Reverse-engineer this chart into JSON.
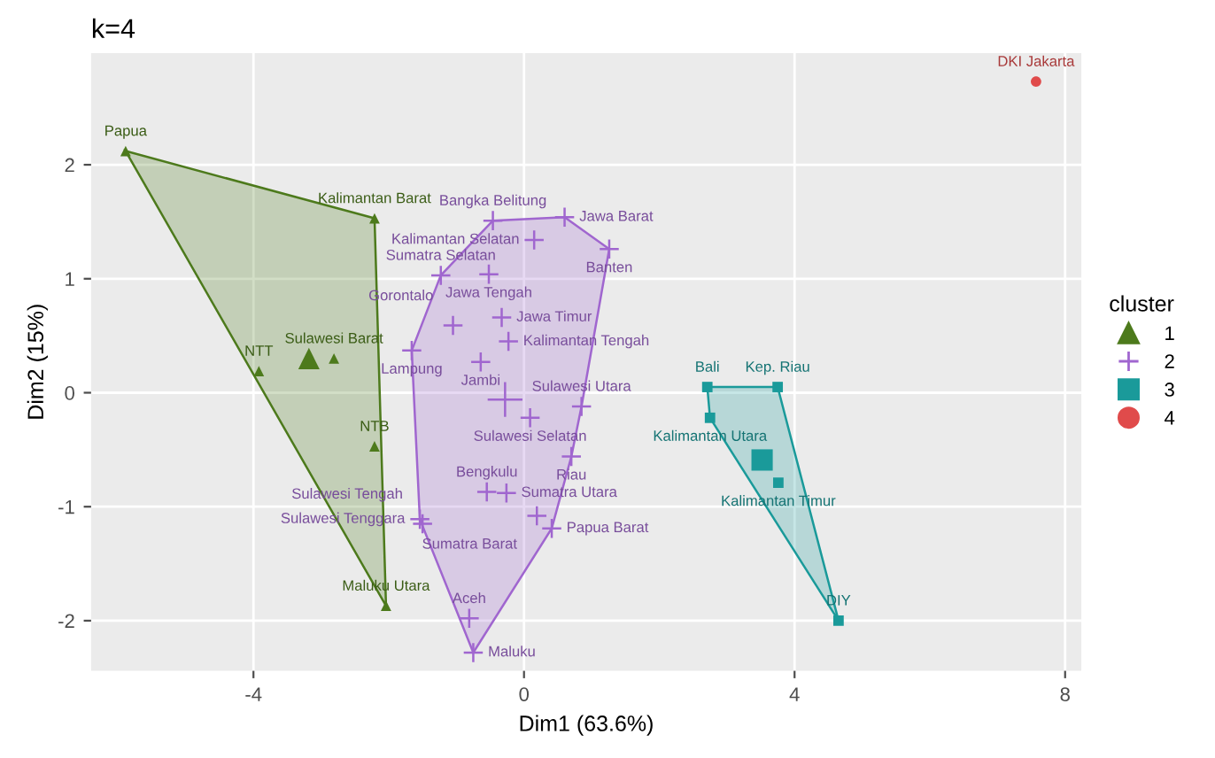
{
  "chart_data": {
    "type": "scatter",
    "title": "k=4",
    "xlabel": "Dim1 (63.6%)",
    "ylabel": "Dim2 (15%)",
    "legend_title": "cluster",
    "legend": "right",
    "grid": true,
    "xlim": [
      -6.4,
      8.24
    ],
    "ylim": [
      -2.44,
      2.98
    ],
    "xticks": [
      -4,
      0,
      4,
      8
    ],
    "yticks": [
      -2,
      -1,
      0,
      1,
      2
    ],
    "series": [
      {
        "name": "1",
        "color": "#4d7a1c",
        "marker": "triangle",
        "x": [
          -5.89,
          -2.21,
          -2.81,
          -3.92,
          -2.21,
          -2.04
        ],
        "values": [
          2.12,
          1.53,
          0.3,
          0.19,
          -0.47,
          -1.87
        ]
      },
      {
        "name": "2",
        "color": "#a066cf",
        "marker": "cross",
        "x": [
          -0.46,
          0.6,
          0.15,
          1.26,
          -1.23,
          -0.52,
          -1.05,
          -0.33,
          -0.23,
          -1.66,
          -0.64,
          0.85,
          0.09,
          0.7,
          -0.55,
          -0.26,
          0.19,
          -1.54,
          -1.5,
          0.41,
          -0.81,
          -0.75
        ],
        "values": [
          1.51,
          1.54,
          1.34,
          1.26,
          1.03,
          1.04,
          0.59,
          0.66,
          0.45,
          0.37,
          0.27,
          -0.12,
          -0.22,
          -0.56,
          -0.87,
          -0.88,
          -1.08,
          -1.11,
          -1.15,
          -1.19,
          -1.98,
          -2.28
        ]
      },
      {
        "name": "3",
        "color": "#1a9a9a",
        "marker": "square",
        "x": [
          2.71,
          3.75,
          2.75,
          3.76,
          4.65
        ],
        "values": [
          0.05,
          0.05,
          -0.22,
          -0.79,
          -2.0
        ]
      },
      {
        "name": "4",
        "color": "#e04b4b",
        "marker": "circle",
        "x": [
          7.57
        ],
        "values": [
          2.73
        ]
      },
      {
        "color": "#4d7a1c",
        "marker": "triangle",
        "x": [
          -3.18
        ],
        "values": [
          0.3
        ]
      },
      {
        "color": "#a066cf",
        "marker": "cross",
        "x": [
          -0.28
        ],
        "values": [
          -0.06
        ]
      },
      {
        "color": "#1a9a9a",
        "marker": "square",
        "x": [
          3.52
        ],
        "values": [
          -0.59
        ]
      }
    ],
    "annotations": [
      {
        "text": "Papua",
        "x": -5.89,
        "y": 2.12
      },
      {
        "text": "Kalimantan Barat",
        "x": -2.21,
        "y": 1.53
      },
      {
        "text": "Sulawesi Barat",
        "x": -2.81,
        "y": 0.3
      },
      {
        "text": "NTT",
        "x": -3.92,
        "y": 0.19
      },
      {
        "text": "NTB",
        "x": -2.21,
        "y": -0.47
      },
      {
        "text": "Maluku Utara",
        "x": -2.04,
        "y": -1.87
      },
      {
        "text": "Bangka Belitung",
        "x": -0.46,
        "y": 1.51
      },
      {
        "text": "Jawa Barat",
        "x": 0.6,
        "y": 1.54
      },
      {
        "text": "Kalimantan Selatan",
        "x": 0.15,
        "y": 1.34
      },
      {
        "text": "Banten",
        "x": 1.26,
        "y": 1.26
      },
      {
        "text": "Sumatra Selatan",
        "x": -1.23,
        "y": 1.03
      },
      {
        "text": "Jawa Tengah",
        "x": -0.52,
        "y": 1.04
      },
      {
        "text": "Gorontalo",
        "x": -1.05,
        "y": 0.59
      },
      {
        "text": "Jawa Timur",
        "x": -0.33,
        "y": 0.66
      },
      {
        "text": "Kalimantan Tengah",
        "x": -0.23,
        "y": 0.45
      },
      {
        "text": "Lampung",
        "x": -1.66,
        "y": 0.37
      },
      {
        "text": "Jambi",
        "x": -0.64,
        "y": 0.27
      },
      {
        "text": "Sulawesi Utara",
        "x": 0.85,
        "y": -0.12
      },
      {
        "text": "Sulawesi Selatan",
        "x": 0.09,
        "y": -0.22
      },
      {
        "text": "Riau",
        "x": 0.7,
        "y": -0.56
      },
      {
        "text": "Bengkulu",
        "x": -0.55,
        "y": -0.87
      },
      {
        "text": "Sumatra Utara",
        "x": -0.26,
        "y": -0.88
      },
      {
        "text": "Sumatra Barat",
        "x": 0.19,
        "y": -1.08
      },
      {
        "text": "Sulawesi Tenggara",
        "x": -1.54,
        "y": -1.11
      },
      {
        "text": "Sulawesi Tengah",
        "x": -1.5,
        "y": -1.15
      },
      {
        "text": "Papua Barat",
        "x": 0.41,
        "y": -1.19
      },
      {
        "text": "Aceh",
        "x": -0.81,
        "y": -1.98
      },
      {
        "text": "Maluku",
        "x": -0.75,
        "y": -2.28
      },
      {
        "text": "Bali",
        "x": 2.71,
        "y": 0.05
      },
      {
        "text": "Kep. Riau",
        "x": 3.75,
        "y": 0.05
      },
      {
        "text": "Kalimantan Utara",
        "x": 2.75,
        "y": -0.22
      },
      {
        "text": "Kalimantan Timur",
        "x": 3.76,
        "y": -0.79
      },
      {
        "text": "DIY",
        "x": 4.65,
        "y": -2.0
      },
      {
        "text": "DKI Jakarta",
        "x": 7.57,
        "y": 2.73
      }
    ]
  }
}
